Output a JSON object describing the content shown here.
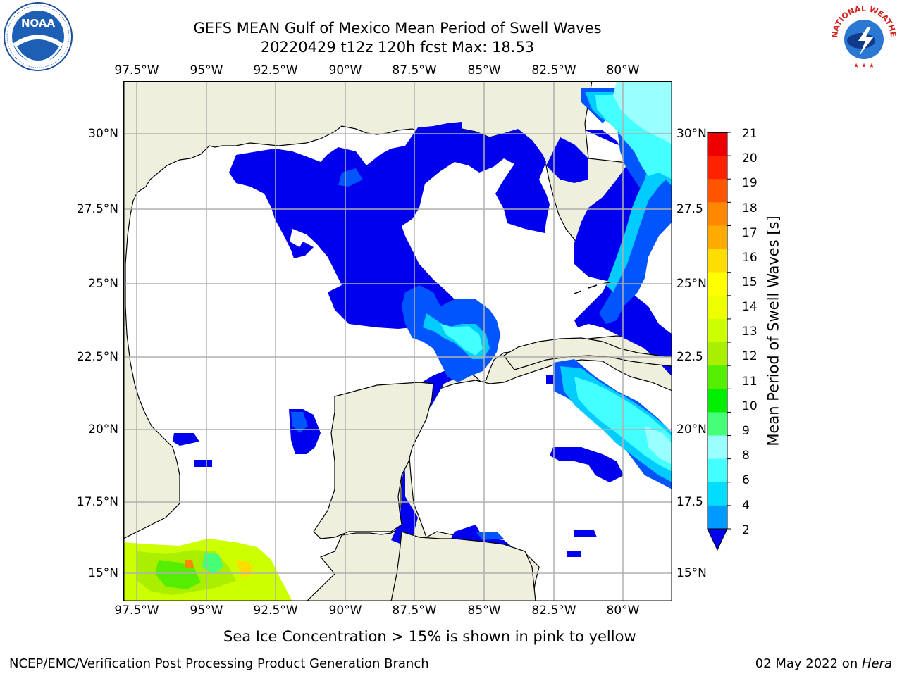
{
  "header": {
    "title_line1": "GEFS MEAN Gulf of Mexico Mean Period of Swell Waves",
    "title_line2": "20220429 t12z 120h fcst   Max: 18.53"
  },
  "logos": {
    "left": {
      "name": "NOAA",
      "ring_text": "NATIONAL OCEANIC AND ATMOSPHERIC ADMINISTRATION · U.S. DEPARTMENT OF COMMERCE"
    },
    "right": {
      "name": "NATIONAL WEATHER SERVICE"
    }
  },
  "map": {
    "lon_labels": [
      "97.5°W",
      "95°W",
      "92.5°W",
      "90°W",
      "87.5°W",
      "85°W",
      "82.5°W",
      "80°W"
    ],
    "lat_labels_left": [
      "30°N",
      "27.5°N",
      "25°N",
      "22.5°N",
      "20°N",
      "17.5°N",
      "15°N"
    ],
    "lat_labels_right": [
      "30°N",
      "27.5",
      "25°N",
      "22.5",
      "20°N",
      "17.5",
      "15°N"
    ],
    "colors": {
      "land": "#efefdd",
      "ocean_no_data": "#ffffff",
      "grid": "#b0b0b0"
    }
  },
  "colorbar": {
    "label": "Mean Period of Swell Waves [s]",
    "ticks": [
      "2",
      "4",
      "6",
      "8",
      "9",
      "10",
      "11",
      "12",
      "13",
      "14",
      "15",
      "16",
      "17",
      "18",
      "19",
      "20",
      "21"
    ],
    "colors": [
      "#0055ff",
      "#0099ff",
      "#00ddff",
      "#44ffff",
      "#99ffff",
      "#44ff77",
      "#00ee00",
      "#55ee00",
      "#aaee00",
      "#ccff00",
      "#eeff00",
      "#ffff00",
      "#ffdd00",
      "#ffaa00",
      "#ff8800",
      "#ff5500",
      "#ff2200",
      "#ee0000"
    ],
    "under_color": "#0000ee"
  },
  "note": "Sea Ice Concentration > 15% is shown in pink to yellow",
  "footer": {
    "left": "NCEP/EMC/Verification Post Processing Product Generation Branch",
    "right_date": "02 May 2022 on ",
    "right_host": "Hera"
  }
}
